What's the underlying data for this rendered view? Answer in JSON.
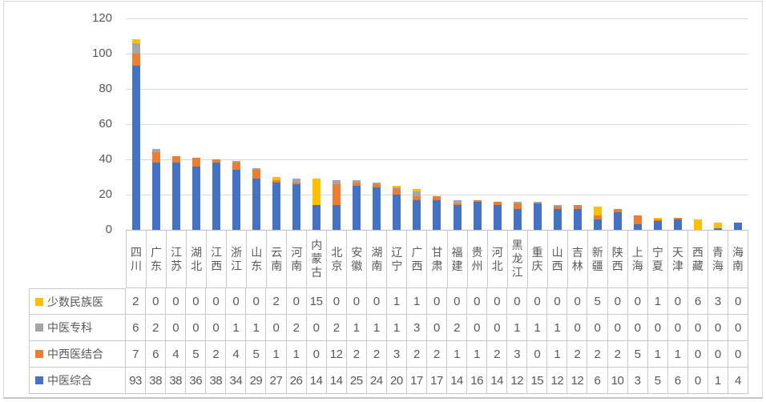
{
  "chart_data": {
    "type": "bar",
    "stacked": true,
    "title": "",
    "xlabel": "",
    "ylabel": "",
    "ylim": [
      0,
      120
    ],
    "y_ticks": [
      0,
      20,
      40,
      60,
      80,
      100,
      120
    ],
    "grid": true,
    "legend_position": "data-table-left-column",
    "categories": [
      "四川",
      "广东",
      "江苏",
      "湖北",
      "江西",
      "浙江",
      "山东",
      "云南",
      "河南",
      "内蒙古",
      "北京",
      "安徽",
      "湖南",
      "辽宁",
      "广西",
      "甘肃",
      "福建",
      "贵州",
      "河北",
      "黑龙江",
      "重庆",
      "山西",
      "吉林",
      "新疆",
      "陕西",
      "上海",
      "宁夏",
      "天津",
      "西藏",
      "青海",
      "海南"
    ],
    "series": [
      {
        "name": "少数民族医",
        "color": "#FFC000",
        "values": [
          2,
          0,
          0,
          0,
          0,
          0,
          0,
          2,
          0,
          15,
          0,
          0,
          0,
          1,
          1,
          0,
          0,
          0,
          0,
          0,
          0,
          0,
          0,
          5,
          0,
          0,
          1,
          0,
          6,
          3,
          0
        ]
      },
      {
        "name": "中医专科",
        "color": "#A5A5A5",
        "values": [
          6,
          2,
          0,
          0,
          0,
          1,
          1,
          0,
          2,
          0,
          2,
          1,
          1,
          1,
          3,
          0,
          2,
          0,
          0,
          1,
          1,
          1,
          0,
          0,
          0,
          0,
          0,
          0,
          0,
          0,
          0
        ]
      },
      {
        "name": "中西医结合",
        "color": "#ED7D31",
        "values": [
          7,
          6,
          4,
          5,
          2,
          4,
          5,
          1,
          1,
          0,
          12,
          2,
          2,
          3,
          2,
          2,
          1,
          1,
          2,
          3,
          0,
          1,
          2,
          2,
          2,
          5,
          1,
          1,
          0,
          0,
          0
        ]
      },
      {
        "name": "中医综合",
        "color": "#4472C4",
        "values": [
          93,
          38,
          38,
          36,
          38,
          34,
          29,
          27,
          26,
          14,
          14,
          25,
          24,
          20,
          17,
          17,
          14,
          16,
          14,
          12,
          15,
          12,
          12,
          6,
          10,
          3,
          5,
          6,
          0,
          1,
          4
        ]
      }
    ],
    "stack_order_bottom_to_top": [
      "中医综合",
      "中西医结合",
      "中医专科",
      "少数民族医"
    ]
  },
  "style_colors": {
    "gridline": "#D9D9D9",
    "axis_line": "#BFBFBF",
    "table_border": "#C9C9C9",
    "text": "#595959",
    "background": "#FFFFFF"
  }
}
